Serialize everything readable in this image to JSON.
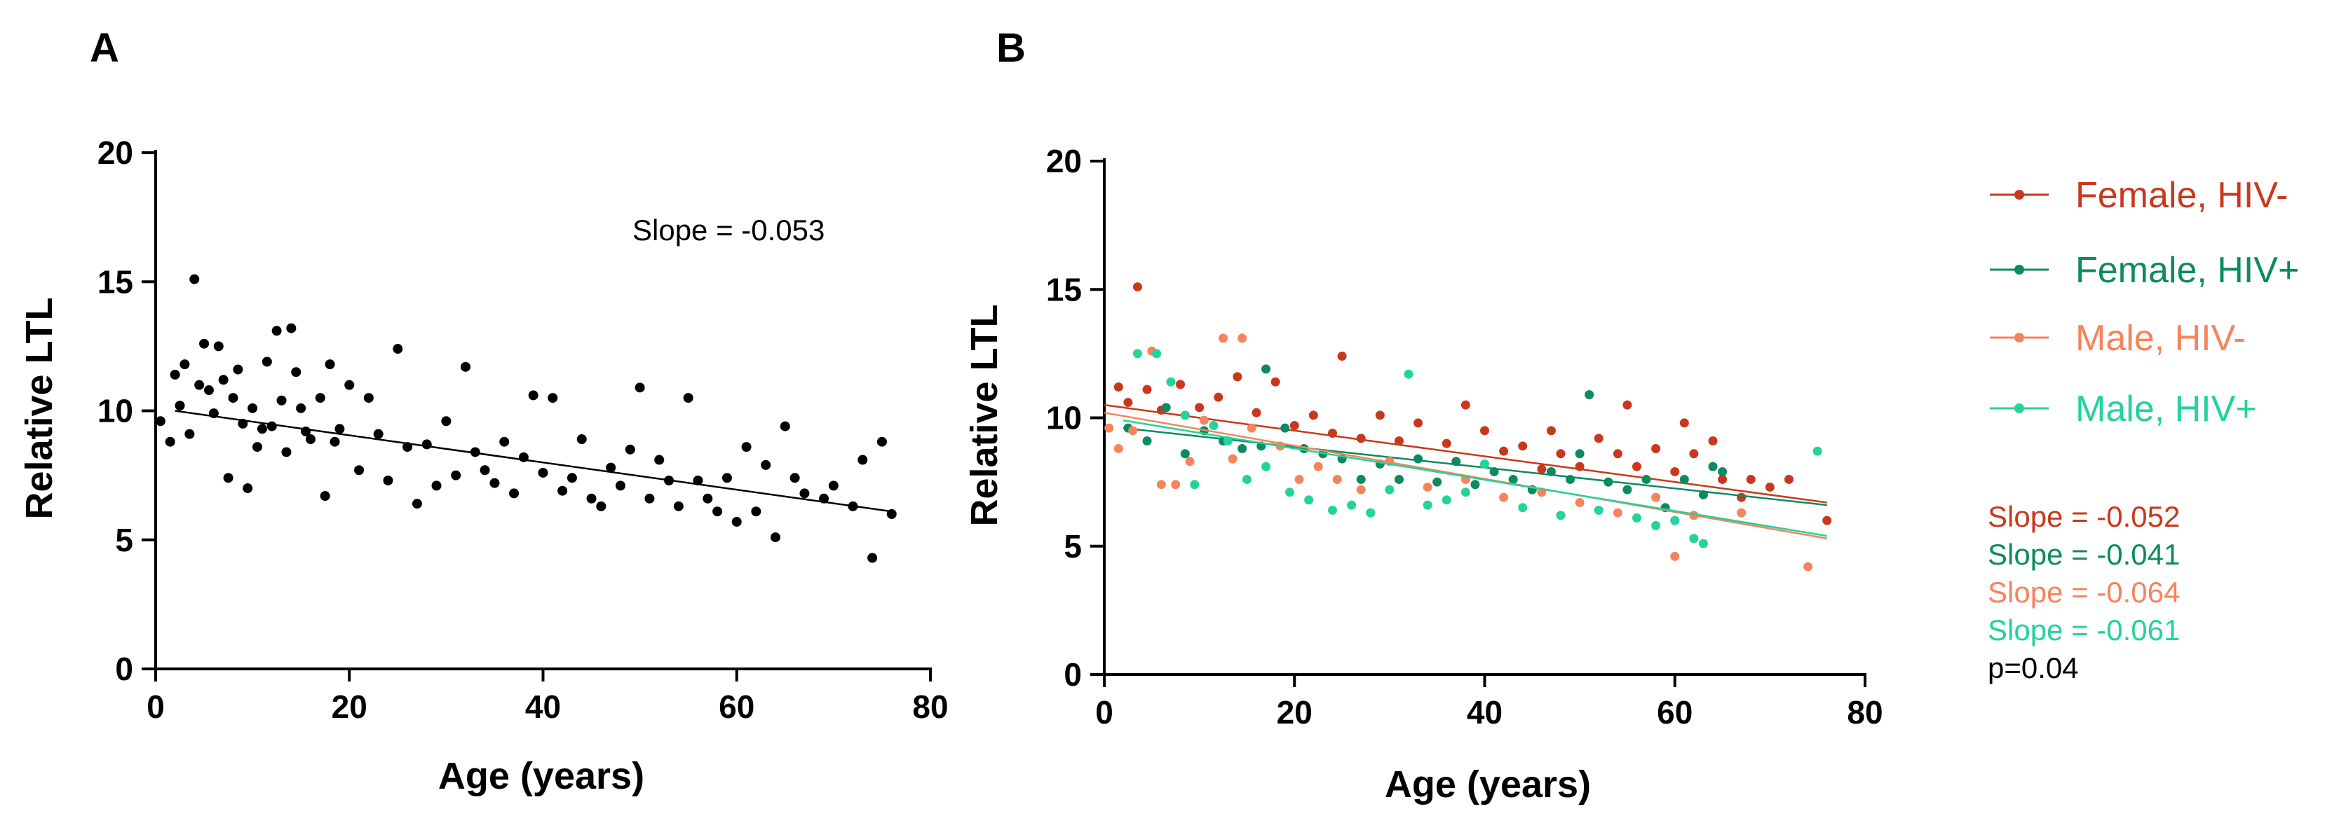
{
  "colors": {
    "axis": "#000000",
    "panel_a_points": "#000000",
    "female_hiv_neg": "#C8381C",
    "female_hiv_pos": "#0C8A62",
    "male_hiv_neg": "#F5845C",
    "male_hiv_pos": "#22D39A"
  },
  "chart_data": [
    {
      "panel": "A",
      "type": "scatter",
      "title": "",
      "xlabel": "Age (years)",
      "ylabel": "Relative LTL",
      "xlim": [
        0,
        80
      ],
      "ylim": [
        0,
        20
      ],
      "xticks": [
        "0",
        "20",
        "40",
        "60",
        "80"
      ],
      "yticks": [
        "0",
        "5",
        "10",
        "15",
        "20"
      ],
      "grid": false,
      "annotation": "Slope = -0.053",
      "series": [
        {
          "points": [
            [
              0.5,
              9.6
            ],
            [
              1.5,
              8.8
            ],
            [
              2,
              11.4
            ],
            [
              2.5,
              10.2
            ],
            [
              3,
              11.8
            ],
            [
              3.5,
              9.1
            ],
            [
              4,
              15.1
            ],
            [
              4.5,
              11
            ],
            [
              5,
              12.6
            ],
            [
              5.5,
              10.8
            ],
            [
              6,
              9.9
            ],
            [
              6.5,
              12.5
            ],
            [
              7,
              11.2
            ],
            [
              7.5,
              7.4
            ],
            [
              8,
              10.5
            ],
            [
              8.5,
              11.6
            ],
            [
              9,
              9.5
            ],
            [
              9.5,
              7
            ],
            [
              10,
              10.1
            ],
            [
              10.5,
              8.6
            ],
            [
              11,
              9.3
            ],
            [
              11.5,
              11.9
            ],
            [
              12,
              9.4
            ],
            [
              12.5,
              13.1
            ],
            [
              13,
              10.4
            ],
            [
              13.5,
              8.4
            ],
            [
              14,
              13.2
            ],
            [
              14.5,
              11.5
            ],
            [
              15,
              10.1
            ],
            [
              15.5,
              9.2
            ],
            [
              16,
              8.9
            ],
            [
              17,
              10.5
            ],
            [
              17.5,
              6.7
            ],
            [
              18,
              11.8
            ],
            [
              18.5,
              8.8
            ],
            [
              19,
              9.3
            ],
            [
              20,
              11
            ],
            [
              21,
              7.7
            ],
            [
              22,
              10.5
            ],
            [
              23,
              9.1
            ],
            [
              24,
              7.3
            ],
            [
              25,
              12.4
            ],
            [
              26,
              8.6
            ],
            [
              27,
              6.4
            ],
            [
              28,
              8.7
            ],
            [
              29,
              7.1
            ],
            [
              30,
              9.6
            ],
            [
              31,
              7.5
            ],
            [
              32,
              11.7
            ],
            [
              33,
              8.4
            ],
            [
              34,
              7.7
            ],
            [
              35,
              7.2
            ],
            [
              36,
              8.8
            ],
            [
              37,
              6.8
            ],
            [
              38,
              8.2
            ],
            [
              39,
              10.6
            ],
            [
              40,
              7.6
            ],
            [
              41,
              10.5
            ],
            [
              42,
              6.9
            ],
            [
              43,
              7.4
            ],
            [
              44,
              8.9
            ],
            [
              45,
              6.6
            ],
            [
              46,
              6.3
            ],
            [
              47,
              7.8
            ],
            [
              48,
              7.1
            ],
            [
              49,
              8.5
            ],
            [
              50,
              10.9
            ],
            [
              51,
              6.6
            ],
            [
              52,
              8.1
            ],
            [
              53,
              7.3
            ],
            [
              54,
              6.3
            ],
            [
              55,
              10.5
            ],
            [
              56,
              7.3
            ],
            [
              57,
              6.6
            ],
            [
              58,
              6.1
            ],
            [
              59,
              7.4
            ],
            [
              60,
              5.7
            ],
            [
              61,
              8.6
            ],
            [
              62,
              6.1
            ],
            [
              63,
              7.9
            ],
            [
              64,
              5.1
            ],
            [
              65,
              9.4
            ],
            [
              66,
              7.4
            ],
            [
              67,
              6.8
            ],
            [
              69,
              6.6
            ],
            [
              70,
              7.1
            ],
            [
              72,
              6.3
            ],
            [
              73,
              8.1
            ],
            [
              74,
              4.3
            ],
            [
              75,
              8.8
            ],
            [
              76,
              6
            ]
          ]
        }
      ],
      "trendline": {
        "x": [
          2,
          76
        ],
        "y": [
          10.0,
          6.1
        ]
      }
    },
    {
      "panel": "B",
      "type": "scatter",
      "title": "",
      "xlabel": "Age (years)",
      "ylabel": "Relative LTL",
      "xlim": [
        0,
        80
      ],
      "ylim": [
        0,
        20
      ],
      "xticks": [
        "0",
        "20",
        "40",
        "60",
        "80"
      ],
      "yticks": [
        "0",
        "5",
        "10",
        "15",
        "20"
      ],
      "grid": false,
      "legend_position": "right",
      "series": [
        {
          "name": "Female, HIV-",
          "color_key": "female_hiv_neg",
          "slope_label": "Slope = -0.052",
          "points": [
            [
              1.5,
              11.2
            ],
            [
              2.5,
              10.6
            ],
            [
              3.5,
              15.1
            ],
            [
              4.5,
              11.1
            ],
            [
              6,
              10.3
            ],
            [
              8,
              11.3
            ],
            [
              10,
              10.4
            ],
            [
              12,
              10.8
            ],
            [
              14,
              11.6
            ],
            [
              16,
              10.2
            ],
            [
              18,
              11.4
            ],
            [
              20,
              9.7
            ],
            [
              22,
              10.1
            ],
            [
              24,
              9.4
            ],
            [
              25,
              12.4
            ],
            [
              27,
              9.2
            ],
            [
              29,
              10.1
            ],
            [
              31,
              9.1
            ],
            [
              33,
              9.8
            ],
            [
              36,
              9
            ],
            [
              38,
              10.5
            ],
            [
              40,
              9.5
            ],
            [
              42,
              8.7
            ],
            [
              44,
              8.9
            ],
            [
              46,
              8
            ],
            [
              47,
              9.5
            ],
            [
              48,
              8.6
            ],
            [
              50,
              8.1
            ],
            [
              52,
              9.2
            ],
            [
              54,
              8.6
            ],
            [
              55,
              10.5
            ],
            [
              56,
              8.1
            ],
            [
              58,
              8.8
            ],
            [
              60,
              7.9
            ],
            [
              61,
              9.8
            ],
            [
              62,
              8.6
            ],
            [
              64,
              9.1
            ],
            [
              65,
              7.6
            ],
            [
              67,
              6.9
            ],
            [
              68,
              7.6
            ],
            [
              70,
              7.3
            ],
            [
              72,
              7.6
            ],
            [
              76,
              6
            ]
          ],
          "trendline": {
            "x": [
              0,
              76
            ],
            "y": [
              10.5,
              6.7
            ]
          }
        },
        {
          "name": "Female, HIV+",
          "color_key": "female_hiv_pos",
          "slope_label": "Slope = -0.041",
          "points": [
            [
              2.5,
              9.6
            ],
            [
              4.5,
              9.1
            ],
            [
              6.5,
              10.4
            ],
            [
              8.5,
              8.6
            ],
            [
              10.5,
              9.5
            ],
            [
              12.5,
              9.1
            ],
            [
              14.5,
              8.8
            ],
            [
              16.5,
              8.9
            ],
            [
              17,
              11.9
            ],
            [
              19,
              9.6
            ],
            [
              21,
              8.8
            ],
            [
              23,
              8.6
            ],
            [
              25,
              8.4
            ],
            [
              27,
              7.6
            ],
            [
              29,
              8.2
            ],
            [
              31,
              7.6
            ],
            [
              33,
              8.4
            ],
            [
              35,
              7.5
            ],
            [
              37,
              8.3
            ],
            [
              39,
              7.4
            ],
            [
              41,
              7.9
            ],
            [
              43,
              7.6
            ],
            [
              45,
              7.2
            ],
            [
              47,
              7.9
            ],
            [
              49,
              7.6
            ],
            [
              50,
              8.6
            ],
            [
              51,
              10.9
            ],
            [
              53,
              7.5
            ],
            [
              55,
              7.2
            ],
            [
              57,
              7.6
            ],
            [
              59,
              6.5
            ],
            [
              61,
              7.6
            ],
            [
              63,
              7
            ],
            [
              64,
              8.1
            ],
            [
              65,
              7.9
            ]
          ],
          "trendline": {
            "x": [
              2,
              76
            ],
            "y": [
              9.6,
              6.6
            ]
          }
        },
        {
          "name": "Male, HIV-",
          "color_key": "male_hiv_neg",
          "slope_label": "Slope = -0.064",
          "points": [
            [
              0.5,
              9.6
            ],
            [
              1.5,
              8.8
            ],
            [
              3,
              9.5
            ],
            [
              5,
              12.6
            ],
            [
              6,
              7.4
            ],
            [
              7.5,
              7.4
            ],
            [
              9,
              8.3
            ],
            [
              10.5,
              9.9
            ],
            [
              12.5,
              13.1
            ],
            [
              13.5,
              8.4
            ],
            [
              14.5,
              13.1
            ],
            [
              15.5,
              9.6
            ],
            [
              18.5,
              8.9
            ],
            [
              20.5,
              7.6
            ],
            [
              22.5,
              8.1
            ],
            [
              24.5,
              7.6
            ],
            [
              27,
              7.2
            ],
            [
              30,
              8.3
            ],
            [
              34,
              7.3
            ],
            [
              38,
              7.6
            ],
            [
              42,
              6.9
            ],
            [
              46,
              7.1
            ],
            [
              50,
              6.7
            ],
            [
              54,
              6.3
            ],
            [
              58,
              6.9
            ],
            [
              60,
              4.6
            ],
            [
              62,
              6.2
            ],
            [
              67,
              6.3
            ],
            [
              74,
              4.2
            ]
          ],
          "trendline": {
            "x": [
              0,
              76
            ],
            "y": [
              10.2,
              5.3
            ]
          }
        },
        {
          "name": "Male, HIV+",
          "color_key": "male_hiv_pos",
          "slope_label": "Slope = -0.061",
          "points": [
            [
              3.5,
              12.5
            ],
            [
              5.5,
              12.5
            ],
            [
              7,
              11.4
            ],
            [
              8.5,
              10.1
            ],
            [
              9.5,
              7.4
            ],
            [
              11.5,
              9.7
            ],
            [
              13,
              9.1
            ],
            [
              15,
              7.6
            ],
            [
              17,
              8.1
            ],
            [
              19.5,
              7.1
            ],
            [
              21.5,
              6.8
            ],
            [
              24,
              6.4
            ],
            [
              26,
              6.6
            ],
            [
              28,
              6.3
            ],
            [
              30,
              7.2
            ],
            [
              32,
              11.7
            ],
            [
              34,
              6.6
            ],
            [
              36,
              6.8
            ],
            [
              38,
              7.1
            ],
            [
              40,
              8.2
            ],
            [
              44,
              6.5
            ],
            [
              48,
              6.2
            ],
            [
              52,
              6.4
            ],
            [
              56,
              6.1
            ],
            [
              58,
              5.8
            ],
            [
              60,
              6
            ],
            [
              62,
              5.3
            ],
            [
              63,
              5.1
            ],
            [
              75,
              8.7
            ]
          ],
          "trendline": {
            "x": [
              2,
              76
            ],
            "y": [
              9.9,
              5.4
            ]
          }
        }
      ],
      "p_value_label": "p=0.04"
    }
  ]
}
